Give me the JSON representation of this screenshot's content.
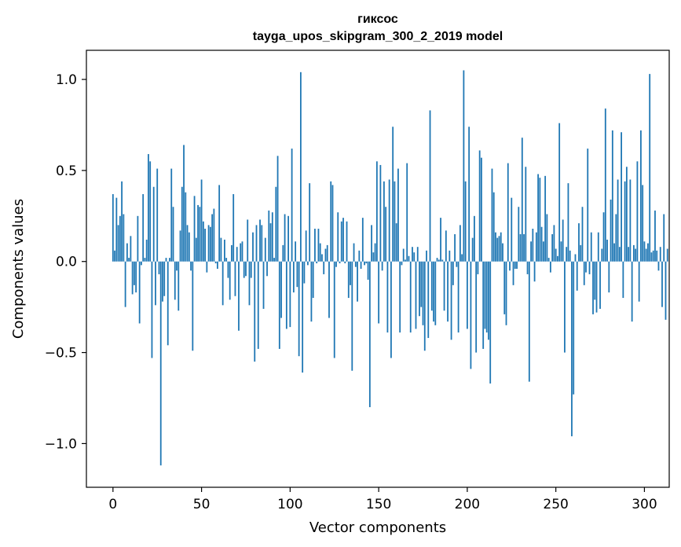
{
  "chart_data": {
    "type": "bar",
    "title": "гиксос",
    "subtitle": "tayga_upos_skipgram_300_2_2019 model",
    "xlabel": "Vector components",
    "ylabel": "Components values",
    "xlim": [
      -15,
      314
    ],
    "ylim": [
      -1.24,
      1.16
    ],
    "xticks": [
      0,
      50,
      100,
      150,
      200,
      250,
      300
    ],
    "yticks": [
      -1.0,
      -0.5,
      0.0,
      0.5,
      1.0
    ],
    "xtick_labels": [
      "0",
      "50",
      "100",
      "150",
      "200",
      "250",
      "300"
    ],
    "ytick_labels": [
      "−1.0",
      "−0.5",
      "0.0",
      "0.5",
      "1.0"
    ],
    "bar_color": "#1f77b4",
    "grid": false,
    "legend": "none",
    "values": [
      0.37,
      0.06,
      0.35,
      0.2,
      0.25,
      0.44,
      0.26,
      -0.25,
      0.1,
      0.02,
      0.14,
      -0.18,
      -0.13,
      -0.17,
      0.25,
      -0.34,
      -0.02,
      0.37,
      0.02,
      0.12,
      0.59,
      0.55,
      -0.53,
      0.41,
      -0.24,
      0.51,
      -0.07,
      -1.12,
      -0.22,
      -0.19,
      0.02,
      -0.46,
      0.02,
      0.51,
      0.3,
      -0.21,
      -0.05,
      -0.27,
      0.17,
      0.41,
      0.64,
      0.38,
      0.2,
      0.16,
      -0.05,
      -0.49,
      0.36,
      0.13,
      0.31,
      0.3,
      0.45,
      0.22,
      0.18,
      -0.06,
      0.2,
      0.19,
      0.26,
      0.29,
      -0.01,
      -0.04,
      0.42,
      0.13,
      -0.24,
      0.12,
      0.02,
      -0.09,
      -0.21,
      0.09,
      0.37,
      -0.19,
      0.08,
      -0.38,
      0.1,
      0.11,
      -0.09,
      -0.08,
      0.23,
      -0.24,
      -0.09,
      0.16,
      -0.55,
      0.2,
      -0.48,
      0.23,
      0.2,
      -0.26,
      0.13,
      -0.08,
      0.28,
      0.21,
      0.27,
      0.02,
      0.41,
      0.58,
      -0.48,
      -0.31,
      0.09,
      0.26,
      -0.37,
      0.25,
      -0.36,
      0.62,
      -0.17,
      0.11,
      -0.14,
      -0.52,
      1.04,
      -0.61,
      -0.12,
      0.17,
      -0.02,
      0.43,
      -0.33,
      -0.2,
      0.18,
      -0.01,
      0.18,
      0.1,
      0.04,
      -0.07,
      0.07,
      0.09,
      -0.31,
      0.44,
      0.42,
      -0.53,
      -0.03,
      0.27,
      -0.01,
      0.22,
      0.24,
      -0.01,
      0.22,
      -0.2,
      -0.13,
      -0.6,
      0.1,
      -0.03,
      -0.22,
      0.06,
      -0.04,
      0.24,
      -0.02,
      -0.01,
      -0.1,
      -0.8,
      0.2,
      0.05,
      0.1,
      0.55,
      -0.34,
      0.53,
      -0.05,
      0.44,
      0.3,
      -0.39,
      0.45,
      -0.53,
      0.74,
      0.44,
      0.21,
      0.51,
      -0.39,
      -0.02,
      0.07,
      0.01,
      0.54,
      0.03,
      -0.39,
      0.08,
      0.05,
      -0.37,
      0.08,
      -0.3,
      -0.25,
      -0.35,
      -0.49,
      0.06,
      -0.42,
      0.83,
      -0.27,
      -0.33,
      -0.35,
      0.02,
      0.01,
      0.24,
      0.01,
      -0.27,
      0.17,
      -0.33,
      0.06,
      -0.43,
      -0.13,
      0.15,
      -0.03,
      -0.39,
      0.2,
      0.04,
      1.05,
      0.44,
      -0.37,
      0.74,
      -0.59,
      0.13,
      0.25,
      -0.5,
      -0.07,
      0.61,
      0.57,
      -0.48,
      -0.37,
      -0.39,
      -0.43,
      -0.67,
      0.51,
      0.38,
      0.16,
      0.13,
      0.14,
      0.16,
      0.1,
      -0.29,
      -0.35,
      0.54,
      -0.05,
      0.35,
      -0.13,
      -0.04,
      -0.04,
      0.3,
      0.15,
      0.68,
      0.15,
      0.52,
      -0.07,
      -0.66,
      0.11,
      0.18,
      -0.11,
      0.16,
      0.48,
      0.46,
      0.19,
      0.11,
      0.47,
      0.26,
      0.02,
      -0.06,
      0.15,
      0.2,
      0.07,
      0.03,
      0.76,
      0.11,
      0.23,
      -0.5,
      0.08,
      0.43,
      0.06,
      -0.96,
      -0.73,
      0.04,
      -0.16,
      0.21,
      0.09,
      0.3,
      -0.13,
      -0.06,
      0.62,
      -0.07,
      0.16,
      -0.29,
      -0.21,
      -0.28,
      0.16,
      -0.26,
      0.07,
      0.27,
      0.84,
      0.12,
      -0.17,
      0.34,
      0.72,
      0.1,
      0.26,
      0.45,
      0.08,
      0.71,
      -0.2,
      0.44,
      0.52,
      0.08,
      0.45,
      -0.33,
      0.09,
      0.07,
      0.55,
      -0.22,
      0.72,
      0.42,
      0.11,
      0.07,
      0.1,
      1.03,
      0.05,
      0.06,
      0.28,
      0.06,
      -0.05,
      0.08,
      -0.25,
      0.26,
      -0.32,
      0.07
    ]
  }
}
